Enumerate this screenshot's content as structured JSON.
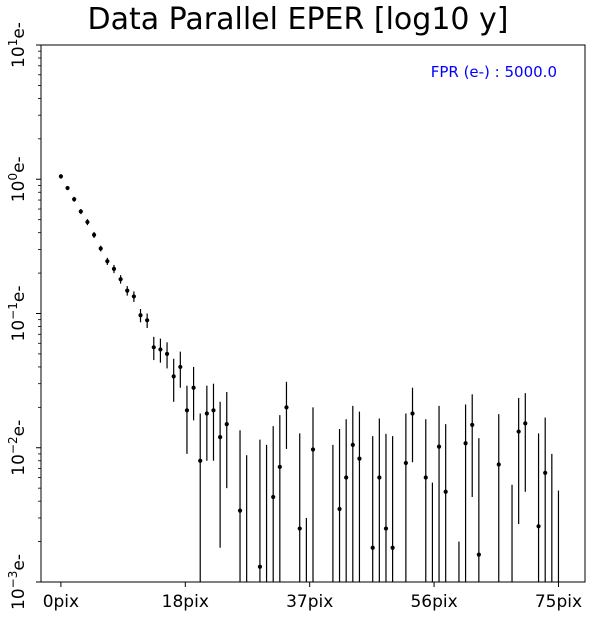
{
  "chart_data": {
    "type": "scatter",
    "title": "Data Parallel EPER [log10 y]",
    "xlabel": "",
    "ylabel": "",
    "y_scale": "log10",
    "xlim": [
      -3,
      79
    ],
    "ylim": [
      0.001,
      10
    ],
    "x_ticks": [
      0,
      18.75,
      37.5,
      56.25,
      75
    ],
    "x_tick_labels": [
      "0pix",
      "18pix",
      "37pix",
      "56pix",
      "75pix"
    ],
    "y_ticks": [
      0.001,
      0.01,
      0.1,
      1,
      10
    ],
    "y_tick_labels": [
      {
        "base": "10",
        "exp": "−3",
        "unit": "e-"
      },
      {
        "base": "10",
        "exp": "−2",
        "unit": "e-"
      },
      {
        "base": "10",
        "exp": "−1",
        "unit": "e-"
      },
      {
        "base": "10",
        "exp": "0",
        "unit": "e-"
      },
      {
        "base": "10",
        "exp": "1",
        "unit": "e-"
      }
    ],
    "annotation": {
      "text": "FPR (e-) : 5000.0",
      "color": "#0000ff"
    },
    "marker_color": "#000000",
    "series": [
      {
        "points": [
          {
            "x": 0,
            "y": 1.05,
            "lo": 1.01,
            "hi": 1.09
          },
          {
            "x": 1,
            "y": 0.86,
            "lo": 0.83,
            "hi": 0.89
          },
          {
            "x": 2,
            "y": 0.71,
            "lo": 0.68,
            "hi": 0.74
          },
          {
            "x": 3,
            "y": 0.575,
            "lo": 0.55,
            "hi": 0.6
          },
          {
            "x": 4,
            "y": 0.48,
            "lo": 0.455,
            "hi": 0.505
          },
          {
            "x": 5,
            "y": 0.385,
            "lo": 0.365,
            "hi": 0.405
          },
          {
            "x": 6,
            "y": 0.305,
            "lo": 0.29,
            "hi": 0.32
          },
          {
            "x": 7,
            "y": 0.245,
            "lo": 0.23,
            "hi": 0.26
          },
          {
            "x": 8,
            "y": 0.215,
            "lo": 0.2,
            "hi": 0.23
          },
          {
            "x": 9,
            "y": 0.18,
            "lo": 0.167,
            "hi": 0.193
          },
          {
            "x": 10,
            "y": 0.148,
            "lo": 0.136,
            "hi": 0.16
          },
          {
            "x": 11,
            "y": 0.134,
            "lo": 0.122,
            "hi": 0.146
          },
          {
            "x": 12,
            "y": 0.097,
            "lo": 0.086,
            "hi": 0.108
          },
          {
            "x": 13,
            "y": 0.089,
            "lo": 0.078,
            "hi": 0.1
          },
          {
            "x": 14,
            "y": 0.056,
            "lo": 0.045,
            "hi": 0.067
          },
          {
            "x": 15,
            "y": 0.054,
            "lo": 0.043,
            "hi": 0.065
          },
          {
            "x": 16,
            "y": 0.05,
            "lo": 0.039,
            "hi": 0.061
          },
          {
            "x": 17,
            "y": 0.034,
            "lo": 0.022,
            "hi": 0.046
          },
          {
            "x": 18,
            "y": 0.04,
            "lo": 0.028,
            "hi": 0.052
          },
          {
            "x": 19,
            "y": 0.019,
            "lo": 0.009,
            "hi": 0.029
          },
          {
            "x": 20,
            "y": 0.028,
            "lo": 0.016,
            "hi": 0.04
          },
          {
            "x": 21,
            "y": 0.008,
            "lo": 0.001,
            "hi": 0.018
          },
          {
            "x": 22,
            "y": 0.018,
            "lo": 0.008,
            "hi": 0.029
          },
          {
            "x": 23,
            "y": 0.019,
            "lo": 0.008,
            "hi": 0.03
          },
          {
            "x": 24,
            "y": 0.012,
            "lo": 0.0018,
            "hi": 0.022
          },
          {
            "x": 25,
            "y": 0.015,
            "lo": 0.005,
            "hi": 0.026
          },
          {
            "x": 27,
            "y": 0.0034,
            "lo": 0.001,
            "hi": 0.0135
          },
          {
            "x": 28,
            "y": null,
            "lo": 0.001,
            "hi": 0.0088
          },
          {
            "x": 30,
            "y": 0.0013,
            "lo": 0.001,
            "hi": 0.0115
          },
          {
            "x": 31,
            "y": null,
            "lo": 0.001,
            "hi": 0.0105
          },
          {
            "x": 32,
            "y": 0.0043,
            "lo": 0.001,
            "hi": 0.0145
          },
          {
            "x": 33,
            "y": 0.0072,
            "lo": 0.001,
            "hi": 0.0175
          },
          {
            "x": 34,
            "y": 0.02,
            "lo": 0.0098,
            "hi": 0.031
          },
          {
            "x": 36,
            "y": 0.0025,
            "lo": 0.001,
            "hi": 0.0128
          },
          {
            "x": 37,
            "y": null,
            "lo": 0.001,
            "hi": 0.003
          },
          {
            "x": 38,
            "y": 0.0097,
            "lo": 0.001,
            "hi": 0.02
          },
          {
            "x": 41,
            "y": null,
            "lo": 0.001,
            "hi": 0.0105
          },
          {
            "x": 42,
            "y": 0.0035,
            "lo": 0.001,
            "hi": 0.0138
          },
          {
            "x": 43,
            "y": 0.006,
            "lo": 0.001,
            "hi": 0.0163
          },
          {
            "x": 44,
            "y": 0.0105,
            "lo": 0.001,
            "hi": 0.0205
          },
          {
            "x": 45,
            "y": 0.0083,
            "lo": 0.001,
            "hi": 0.0186
          },
          {
            "x": 47,
            "y": 0.0018,
            "lo": 0.001,
            "hi": 0.0122
          },
          {
            "x": 48,
            "y": 0.006,
            "lo": 0.001,
            "hi": 0.0165
          },
          {
            "x": 49,
            "y": 0.0025,
            "lo": 0.001,
            "hi": 0.0127
          },
          {
            "x": 50,
            "y": 0.0018,
            "lo": 0.001,
            "hi": 0.0122
          },
          {
            "x": 52,
            "y": 0.0077,
            "lo": 0.001,
            "hi": 0.018
          },
          {
            "x": 53,
            "y": 0.018,
            "lo": 0.0078,
            "hi": 0.028
          },
          {
            "x": 55,
            "y": 0.006,
            "lo": 0.001,
            "hi": 0.0163
          },
          {
            "x": 56,
            "y": null,
            "lo": 0.001,
            "hi": 0.0055
          },
          {
            "x": 57,
            "y": 0.0102,
            "lo": 0.001,
            "hi": 0.0205
          },
          {
            "x": 58,
            "y": 0.0047,
            "lo": 0.001,
            "hi": 0.015
          },
          {
            "x": 60,
            "y": null,
            "lo": 0.001,
            "hi": 0.002
          },
          {
            "x": 61,
            "y": 0.0108,
            "lo": 0.001,
            "hi": 0.021
          },
          {
            "x": 62,
            "y": 0.0148,
            "lo": 0.0043,
            "hi": 0.025
          },
          {
            "x": 63,
            "y": 0.0016,
            "lo": 0.001,
            "hi": 0.0118
          },
          {
            "x": 66,
            "y": 0.0075,
            "lo": 0.001,
            "hi": 0.0178
          },
          {
            "x": 68,
            "y": null,
            "lo": 0.001,
            "hi": 0.0053
          },
          {
            "x": 69,
            "y": 0.0132,
            "lo": 0.0027,
            "hi": 0.0235
          },
          {
            "x": 70,
            "y": 0.0152,
            "lo": 0.0047,
            "hi": 0.0255
          },
          {
            "x": 72,
            "y": 0.0026,
            "lo": 0.001,
            "hi": 0.0128
          },
          {
            "x": 73,
            "y": 0.0065,
            "lo": 0.001,
            "hi": 0.0168
          },
          {
            "x": 74,
            "y": null,
            "lo": 0.001,
            "hi": 0.009
          },
          {
            "x": 75,
            "y": null,
            "lo": 0.001,
            "hi": 0.0048
          }
        ]
      }
    ]
  }
}
